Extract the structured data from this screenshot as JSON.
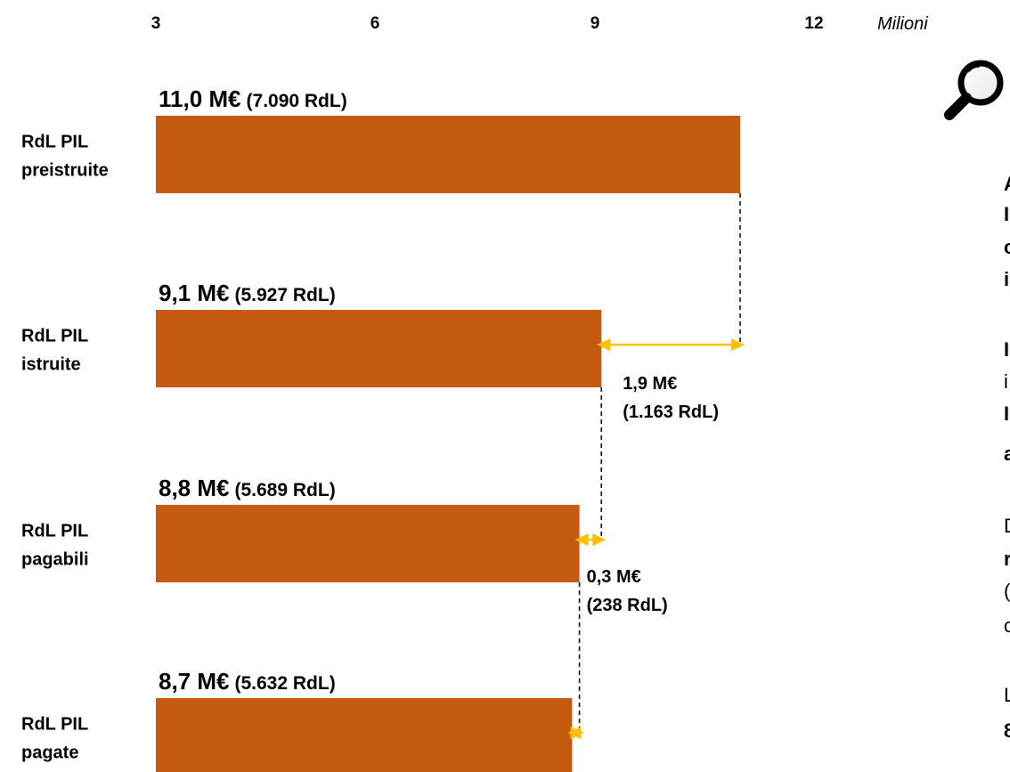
{
  "chart_data": {
    "type": "bar",
    "orientation": "horizontal",
    "unit_label": "Milioni",
    "xlim": [
      3,
      12
    ],
    "x_ticks": [
      "3",
      "6",
      "9",
      "12"
    ],
    "bar_color": "#C55A11",
    "difference_color": "#FFC000",
    "categories": [
      {
        "line1": "RdL PIL",
        "line2": "preistruite"
      },
      {
        "line1": "RdL PIL",
        "line2": "istruite"
      },
      {
        "line1": "RdL PIL",
        "line2": "pagabili"
      },
      {
        "line1": "RdL PIL",
        "line2": "pagate"
      }
    ],
    "values": [
      11.0,
      9.1,
      8.8,
      8.7
    ],
    "value_labels": [
      {
        "main": "11,0 M€",
        "detail": "(7.090 RdL)"
      },
      {
        "main": "9,1 M€",
        "detail": "(5.927 RdL)"
      },
      {
        "main": "8,8 M€",
        "detail": "(5.689 RdL)"
      },
      {
        "main": "8,7 M€",
        "detail": "(5.632 RdL)"
      }
    ],
    "differences": [
      {
        "from": 0,
        "to": 1,
        "value": 1.9,
        "line1": "1,9 M€",
        "line2": "(1.163 RdL)"
      },
      {
        "from": 1,
        "to": 2,
        "value": 0.3,
        "line1": "0,3 M€",
        "line2": "(238 RdL)"
      },
      {
        "from": 2,
        "to": 3,
        "value": 0.1
      }
    ]
  },
  "icons": {
    "magnifier": "magnifier-icon"
  },
  "side_text": [
    {
      "text": "A",
      "bold": true
    },
    {
      "text": "I",
      "bold": true
    },
    {
      "text": "c",
      "bold": true
    },
    {
      "text": "i",
      "bold": true
    },
    {
      "text": "I",
      "bold": true
    },
    {
      "text": "i",
      "bold": false
    },
    {
      "text": "I",
      "bold": true
    },
    {
      "text": "a",
      "bold": true
    },
    {
      "text": "D",
      "bold": false
    },
    {
      "text": "r",
      "bold": true
    },
    {
      "text": "(",
      "bold": false
    },
    {
      "text": "c",
      "bold": false
    },
    {
      "text": "L",
      "bold": false
    },
    {
      "text": "8",
      "bold": true
    }
  ]
}
